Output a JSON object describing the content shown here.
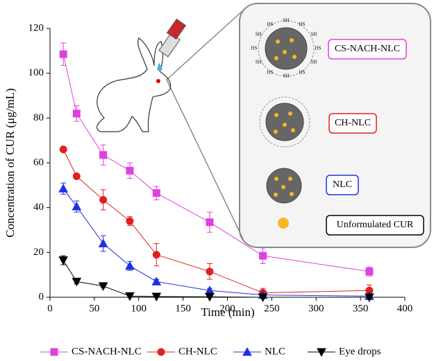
{
  "chart_data": {
    "type": "line",
    "xlabel": "Time (min)",
    "ylabel": "Concentration of CUR (μg/mL)",
    "xlim": [
      0,
      400
    ],
    "xticks": [
      0,
      50,
      100,
      150,
      200,
      250,
      300,
      350,
      400
    ],
    "ylim": [
      0,
      120
    ],
    "yticks": [
      0,
      20,
      40,
      60,
      80,
      100,
      120
    ],
    "x": [
      15,
      30,
      60,
      90,
      120,
      180,
      240,
      360
    ],
    "series": [
      {
        "name": "CS-NACH-NLC",
        "color": "#e040e0",
        "marker": "square",
        "values": [
          108.5,
          82,
          63.5,
          56.5,
          46.5,
          33.5,
          18.5,
          11.5
        ],
        "errors": [
          5,
          3.5,
          4.5,
          3.5,
          3,
          4.5,
          3.5,
          2
        ]
      },
      {
        "name": "CH-NLC",
        "color": "#e02020",
        "marker": "circle",
        "values": [
          66,
          54,
          43.5,
          34,
          19,
          11.5,
          2,
          3
        ],
        "errors": [
          0.5,
          1,
          4.5,
          2,
          5,
          3.5,
          2,
          2.5
        ]
      },
      {
        "name": "NLC",
        "color": "#2030e0",
        "marker": "triangle",
        "values": [
          48.5,
          40.5,
          24,
          14,
          7,
          3,
          1,
          0.5
        ],
        "errors": [
          2.5,
          2.5,
          3.5,
          2,
          1,
          1,
          0.5,
          0.5
        ]
      },
      {
        "name": "Eye drops",
        "color": "#000000",
        "marker": "triangle-down",
        "values": [
          16.5,
          7,
          5,
          0.5,
          0.3,
          0.2,
          0,
          0
        ],
        "errors": [
          2,
          1,
          0.5,
          0.5,
          0.3,
          0.2,
          0,
          0
        ]
      }
    ]
  },
  "inset": {
    "labels": [
      "CS-NACH-NLC",
      "CH-NLC",
      "NLC",
      "Unformulated CUR"
    ],
    "thiol_groups": [
      "HS",
      "SH",
      "HS",
      "SH",
      "HS",
      "SH",
      "HS",
      "SH",
      "HS",
      "SH",
      "HS",
      "SH"
    ]
  }
}
